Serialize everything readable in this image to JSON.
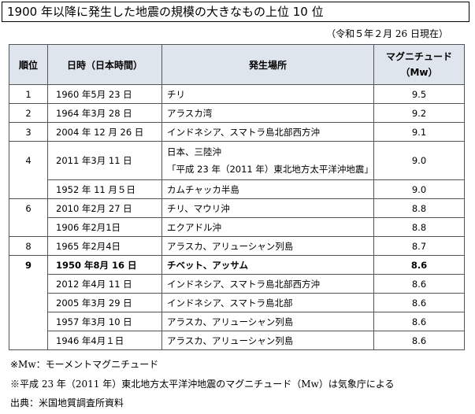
{
  "title": "1900 年以降に発生した地震の規模の大きなもの上位 10 位",
  "as_of_note": "（令和５年２月 26 日現在）",
  "table": {
    "headers": {
      "rank": "順位",
      "date": "日時（日本時間）",
      "place": "発生場所",
      "magnitude_line1": "マグニチュード",
      "magnitude_line2": "（Mw）"
    },
    "rows": [
      {
        "rank": "1",
        "date": "1960 年5月 23 日",
        "place": "チリ",
        "place2": "",
        "magnitude": "9.5"
      },
      {
        "rank": "2",
        "date": "1964 年3月 28 日",
        "place": "アラスカ湾",
        "place2": "",
        "magnitude": "9.2"
      },
      {
        "rank": "3",
        "date": "2004 年 12 月 26 日",
        "place": "インドネシア、スマトラ島北部西方沖",
        "place2": "",
        "magnitude": "9.1"
      },
      {
        "rank": "4",
        "date": "2011 年3月 11 日",
        "place": "日本、三陸沖",
        "place2": "「平成 23 年（2011 年）東北地方太平洋沖地震」",
        "magnitude": "9.0"
      },
      {
        "rank": "",
        "date": "1952 年 11 月５日",
        "place": "カムチャッカ半島",
        "place2": "",
        "magnitude": "9.0"
      },
      {
        "rank": "6",
        "date": "2010 年2月 27 日",
        "place": "チリ、マウリ沖",
        "place2": "",
        "magnitude": "8.8"
      },
      {
        "rank": "",
        "date": "1906 年2月1日",
        "place": "エクアドル沖",
        "place2": "",
        "magnitude": "8.8"
      },
      {
        "rank": "8",
        "date": "1965 年2月4日",
        "place": "アラスカ、アリューシャン列島",
        "place2": "",
        "magnitude": "8.7"
      },
      {
        "rank": "9",
        "date": "1950 年8月 16 日",
        "place": "チベット、アッサム",
        "place2": "",
        "magnitude": "8.6"
      },
      {
        "rank": "",
        "date": "2012 年4月 11 日",
        "place": "インドネシア、スマトラ島北部西方沖",
        "place2": "",
        "magnitude": "8.6"
      },
      {
        "rank": "",
        "date": "2005 年3月 29 日",
        "place": "インドネシア、スマトラ島北部",
        "place2": "",
        "magnitude": "8.6"
      },
      {
        "rank": "",
        "date": "1957 年3月 10 日",
        "place": "アラスカ、アリューシャン列島",
        "place2": "",
        "magnitude": "8.6"
      },
      {
        "rank": "",
        "date": "1946 年4月１日",
        "place": "アラスカ、アリューシャン列島",
        "place2": "",
        "magnitude": "8.6"
      }
    ]
  },
  "footnotes": [
    "※Mw：モーメントマグニチュード",
    "※平成 23 年（2011 年）東北地方太平洋沖地震のマグニチュード（Mw）は気象庁による",
    "出典：米国地質調査所資料"
  ]
}
